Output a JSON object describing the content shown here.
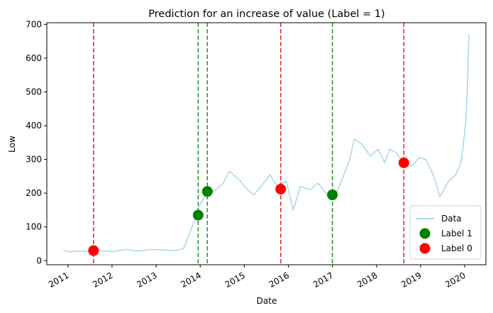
{
  "chart_data": {
    "type": "line",
    "title": "Prediction for an increase of value (Label = 1)",
    "xlabel": "Date",
    "ylabel": "Low",
    "x_ticks": [
      "2011",
      "2012",
      "2013",
      "2014",
      "2015",
      "2016",
      "2017",
      "2018",
      "2019",
      "2020"
    ],
    "y_ticks": [
      0,
      100,
      200,
      300,
      400,
      500,
      600,
      700
    ],
    "xlim": [
      "2010-07-10",
      "2020-06-25"
    ],
    "ylim": [
      -12,
      705
    ],
    "grid": false,
    "legend": {
      "placement": "lower right",
      "entries": [
        "Data",
        "Label 1",
        "Label 0"
      ]
    },
    "series": [
      {
        "name": "Data",
        "style": "line",
        "color": "#add8e6",
        "x": [
          "2010-11-22",
          "2011-01-05",
          "2011-03-20",
          "2011-06-20",
          "2011-09-20",
          "2012-01-05",
          "2012-04-20",
          "2012-08-01",
          "2012-11-20",
          "2013-03-01",
          "2013-06-01",
          "2013-07-10",
          "2013-08-20",
          "2013-10-20",
          "2013-12-20",
          "2014-02-10",
          "2014-04-20",
          "2014-07-01",
          "2014-09-01",
          "2014-11-20",
          "2015-01-15",
          "2015-03-20",
          "2015-05-20",
          "2015-08-01",
          "2015-10-01",
          "2015-12-15",
          "2016-02-10",
          "2016-04-10",
          "2016-07-01",
          "2016-09-01",
          "2016-11-10",
          "2017-01-10",
          "2017-03-20",
          "2017-05-15",
          "2017-07-01",
          "2017-09-01",
          "2017-11-10",
          "2018-01-15",
          "2018-03-10",
          "2018-04-20",
          "2018-06-15",
          "2018-08-10",
          "2018-10-20",
          "2018-12-20",
          "2019-02-15",
          "2019-04-20",
          "2019-06-10",
          "2019-08-20",
          "2019-10-20",
          "2019-12-01",
          "2019-12-20",
          "2020-01-10",
          "2020-01-25",
          "2020-02-05"
        ],
        "y": [
          32,
          26,
          28,
          28,
          30,
          27,
          33,
          29,
          33,
          32,
          30,
          32,
          38,
          95,
          160,
          190,
          205,
          225,
          265,
          240,
          215,
          195,
          220,
          255,
          220,
          235,
          150,
          220,
          210,
          230,
          200,
          180,
          240,
          290,
          360,
          345,
          310,
          330,
          290,
          330,
          320,
          290,
          280,
          305,
          300,
          250,
          190,
          235,
          255,
          290,
          340,
          410,
          520,
          670
        ]
      },
      {
        "name": "Label 1",
        "style": "scatter",
        "color": "#008000",
        "x": [
          "2013-12-15",
          "2014-03-01",
          "2016-12-31"
        ],
        "y": [
          135,
          205,
          195
        ]
      },
      {
        "name": "Label 0",
        "style": "scatter",
        "color": "#ff0000",
        "x": [
          "2011-08-01",
          "2015-10-30",
          "2018-08-15"
        ],
        "y": [
          30,
          212,
          290
        ]
      }
    ],
    "vertical_lines": [
      {
        "x": "2011-08-01",
        "color": "#e03030",
        "style": "dashed"
      },
      {
        "x": "2013-12-15",
        "color": "#2a9a2a",
        "style": "dashed"
      },
      {
        "x": "2014-03-01",
        "color": "#2a9a2a",
        "style": "dashed"
      },
      {
        "x": "2015-10-30",
        "color": "#e03030",
        "style": "dashed"
      },
      {
        "x": "2016-12-31",
        "color": "#2a9a2a",
        "style": "dashed"
      },
      {
        "x": "2018-08-15",
        "color": "#e03030",
        "style": "dashed"
      }
    ]
  }
}
